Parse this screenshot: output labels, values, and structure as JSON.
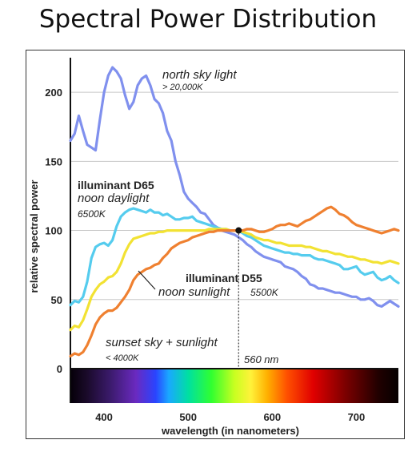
{
  "title": "Spectral Power Distribution",
  "chart_data": {
    "type": "line",
    "xlabel": "wavelength (in nanometers)",
    "ylabel": "relative spectral power",
    "xlim": [
      360,
      750
    ],
    "ylim": [
      0,
      225
    ],
    "x_ticks": [
      400,
      500,
      600,
      700
    ],
    "y_ticks": [
      0,
      50,
      100,
      150,
      200
    ],
    "grid": "horizontal",
    "legend": "none",
    "spectrum_band": true,
    "series": [
      {
        "color": "#8090ee",
        "x": [
          360,
          365,
          370,
          375,
          380,
          385,
          390,
          395,
          400,
          405,
          410,
          415,
          420,
          425,
          430,
          435,
          440,
          445,
          450,
          455,
          460,
          465,
          470,
          475,
          480,
          485,
          490,
          495,
          500,
          505,
          510,
          515,
          520,
          525,
          530,
          535,
          540,
          545,
          550,
          555,
          560,
          565,
          570,
          575,
          580,
          585,
          590,
          595,
          600,
          605,
          610,
          615,
          620,
          625,
          630,
          635,
          640,
          645,
          650,
          655,
          660,
          665,
          670,
          675,
          680,
          685,
          690,
          695,
          700,
          705,
          710,
          715,
          720,
          725,
          730,
          735,
          740,
          745,
          750
        ],
        "y": [
          165,
          170,
          183,
          172,
          162,
          160,
          158,
          180,
          200,
          212,
          218,
          215,
          210,
          198,
          188,
          193,
          205,
          210,
          212,
          205,
          195,
          192,
          185,
          172,
          165,
          150,
          140,
          128,
          123,
          120,
          117,
          113,
          112,
          108,
          104,
          102,
          100,
          99,
          98,
          97,
          95,
          93,
          90,
          88,
          85,
          83,
          81,
          80,
          79,
          78,
          77,
          74,
          73,
          72,
          70,
          67,
          65,
          61,
          60,
          58,
          58,
          57,
          56,
          55,
          55,
          54,
          53,
          52,
          52,
          50,
          50,
          51,
          49,
          46,
          45,
          47,
          49,
          47,
          45
        ]
      },
      {
        "color": "#55ccee",
        "x": [
          360,
          365,
          370,
          375,
          380,
          385,
          390,
          395,
          400,
          405,
          410,
          415,
          420,
          425,
          430,
          435,
          440,
          445,
          450,
          455,
          460,
          465,
          470,
          475,
          480,
          485,
          490,
          495,
          500,
          505,
          510,
          515,
          520,
          525,
          530,
          535,
          540,
          545,
          550,
          555,
          560,
          565,
          570,
          575,
          580,
          585,
          590,
          595,
          600,
          605,
          610,
          615,
          620,
          625,
          630,
          635,
          640,
          645,
          650,
          655,
          660,
          665,
          670,
          675,
          680,
          685,
          690,
          695,
          700,
          705,
          710,
          715,
          720,
          725,
          730,
          735,
          740,
          745,
          750
        ],
        "y": [
          46,
          49,
          48,
          52,
          63,
          80,
          88,
          90,
          91,
          89,
          93,
          103,
          110,
          113,
          115,
          116,
          115,
          114,
          113,
          115,
          113,
          113,
          111,
          112,
          110,
          108,
          108,
          109,
          109,
          110,
          107,
          106,
          105,
          104,
          103,
          102,
          101,
          101,
          100,
          100,
          100,
          98,
          96,
          95,
          93,
          91,
          89,
          88,
          87,
          86,
          85,
          84,
          84,
          83,
          83,
          82,
          82,
          82,
          80,
          79,
          79,
          78,
          77,
          76,
          75,
          72,
          72,
          73,
          74,
          70,
          68,
          69,
          70,
          66,
          64,
          65,
          67,
          64,
          62
        ]
      },
      {
        "color": "#f2e233",
        "x": [
          360,
          365,
          370,
          375,
          380,
          385,
          390,
          395,
          400,
          405,
          410,
          415,
          420,
          425,
          430,
          435,
          440,
          445,
          450,
          455,
          460,
          465,
          470,
          475,
          480,
          485,
          490,
          495,
          500,
          505,
          510,
          515,
          520,
          525,
          530,
          535,
          540,
          545,
          550,
          555,
          560,
          565,
          570,
          575,
          580,
          585,
          590,
          595,
          600,
          605,
          610,
          615,
          620,
          625,
          630,
          635,
          640,
          645,
          650,
          655,
          660,
          665,
          670,
          675,
          680,
          685,
          690,
          695,
          700,
          705,
          710,
          715,
          720,
          725,
          730,
          735,
          740,
          745,
          750
        ],
        "y": [
          28,
          31,
          30,
          35,
          43,
          52,
          57,
          61,
          63,
          66,
          67,
          70,
          76,
          84,
          90,
          94,
          95,
          96,
          97,
          98,
          98,
          99,
          99,
          100,
          100,
          100,
          100,
          100,
          100,
          100,
          100,
          100,
          100,
          101,
          101,
          101,
          101,
          101,
          100,
          100,
          100,
          99,
          98,
          97,
          95,
          94,
          93,
          93,
          92,
          91,
          91,
          90,
          89,
          89,
          89,
          89,
          88,
          88,
          87,
          86,
          85,
          85,
          84,
          83,
          83,
          82,
          81,
          81,
          80,
          79,
          79,
          78,
          77,
          77,
          76,
          77,
          78,
          77,
          76
        ]
      },
      {
        "color": "#ef8030",
        "x": [
          360,
          365,
          370,
          375,
          380,
          385,
          390,
          395,
          400,
          405,
          410,
          415,
          420,
          425,
          430,
          435,
          440,
          445,
          450,
          455,
          460,
          465,
          470,
          475,
          480,
          485,
          490,
          495,
          500,
          505,
          510,
          515,
          520,
          525,
          530,
          535,
          540,
          545,
          550,
          555,
          560,
          565,
          570,
          575,
          580,
          585,
          590,
          595,
          600,
          605,
          610,
          615,
          620,
          625,
          630,
          635,
          640,
          645,
          650,
          655,
          660,
          665,
          670,
          675,
          680,
          685,
          690,
          695,
          700,
          705,
          710,
          715,
          720,
          725,
          730,
          735,
          740,
          745,
          750
        ],
        "y": [
          9,
          11,
          10,
          12,
          17,
          24,
          32,
          37,
          40,
          42,
          42,
          44,
          48,
          52,
          57,
          64,
          68,
          70,
          72,
          73,
          75,
          76,
          80,
          83,
          87,
          89,
          91,
          92,
          93,
          95,
          96,
          97,
          98,
          99,
          99,
          100,
          100,
          100,
          100,
          100,
          100,
          100,
          101,
          101,
          100,
          99,
          99,
          100,
          101,
          103,
          104,
          104,
          105,
          104,
          103,
          105,
          107,
          108,
          110,
          112,
          114,
          116,
          117,
          115,
          112,
          111,
          109,
          106,
          104,
          103,
          102,
          101,
          100,
          99,
          98,
          99,
          100,
          101,
          100
        ]
      }
    ],
    "marker": {
      "x": 560,
      "y": 100,
      "label": "560 nm"
    },
    "annotations": {
      "north_sky": {
        "name": "north sky light",
        "temp": "> 20,000K"
      },
      "d65": {
        "name": "illuminant D65",
        "desc": "noon daylight",
        "temp": "6500K"
      },
      "d55": {
        "name": "illuminant D55",
        "desc": "noon sunlight",
        "temp": "5500K"
      },
      "sunset": {
        "name": "sunset sky + sunlight",
        "temp": "< 4000K"
      }
    }
  }
}
